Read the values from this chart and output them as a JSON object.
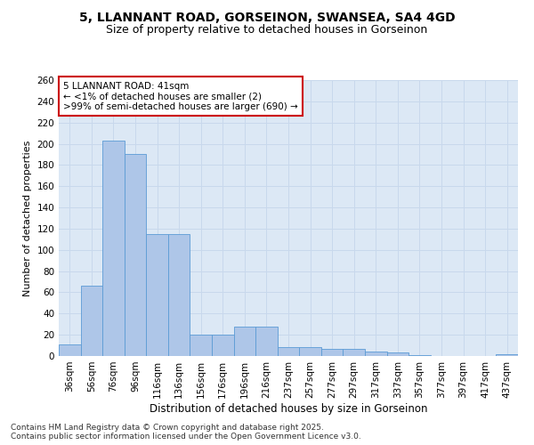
{
  "title1": "5, LLANNANT ROAD, GORSEINON, SWANSEA, SA4 4GD",
  "title2": "Size of property relative to detached houses in Gorseinon",
  "xlabel": "Distribution of detached houses by size in Gorseinon",
  "ylabel": "Number of detached properties",
  "categories": [
    "36sqm",
    "56sqm",
    "76sqm",
    "96sqm",
    "116sqm",
    "136sqm",
    "156sqm",
    "176sqm",
    "196sqm",
    "216sqm",
    "237sqm",
    "257sqm",
    "277sqm",
    "297sqm",
    "317sqm",
    "337sqm",
    "357sqm",
    "377sqm",
    "397sqm",
    "417sqm",
    "437sqm"
  ],
  "values": [
    11,
    66,
    203,
    190,
    115,
    115,
    20,
    20,
    28,
    28,
    8,
    8,
    7,
    7,
    4,
    3,
    1,
    0,
    0,
    0,
    2
  ],
  "bar_color": "#aec6e8",
  "bar_edge_color": "#5b9bd5",
  "grid_color": "#c8d8ec",
  "background_color": "#dce8f5",
  "annotation_box_text": "5 LLANNANT ROAD: 41sqm\n← <1% of detached houses are smaller (2)\n>99% of semi-detached houses are larger (690) →",
  "annotation_box_color": "#ffffff",
  "annotation_box_edge_color": "#cc0000",
  "ylim": [
    0,
    260
  ],
  "yticks": [
    0,
    20,
    40,
    60,
    80,
    100,
    120,
    140,
    160,
    180,
    200,
    220,
    240,
    260
  ],
  "footnote": "Contains HM Land Registry data © Crown copyright and database right 2025.\nContains public sector information licensed under the Open Government Licence v3.0.",
  "title1_fontsize": 10,
  "title2_fontsize": 9,
  "xlabel_fontsize": 8.5,
  "ylabel_fontsize": 8,
  "tick_fontsize": 7.5,
  "annotation_fontsize": 7.5,
  "footnote_fontsize": 6.5
}
